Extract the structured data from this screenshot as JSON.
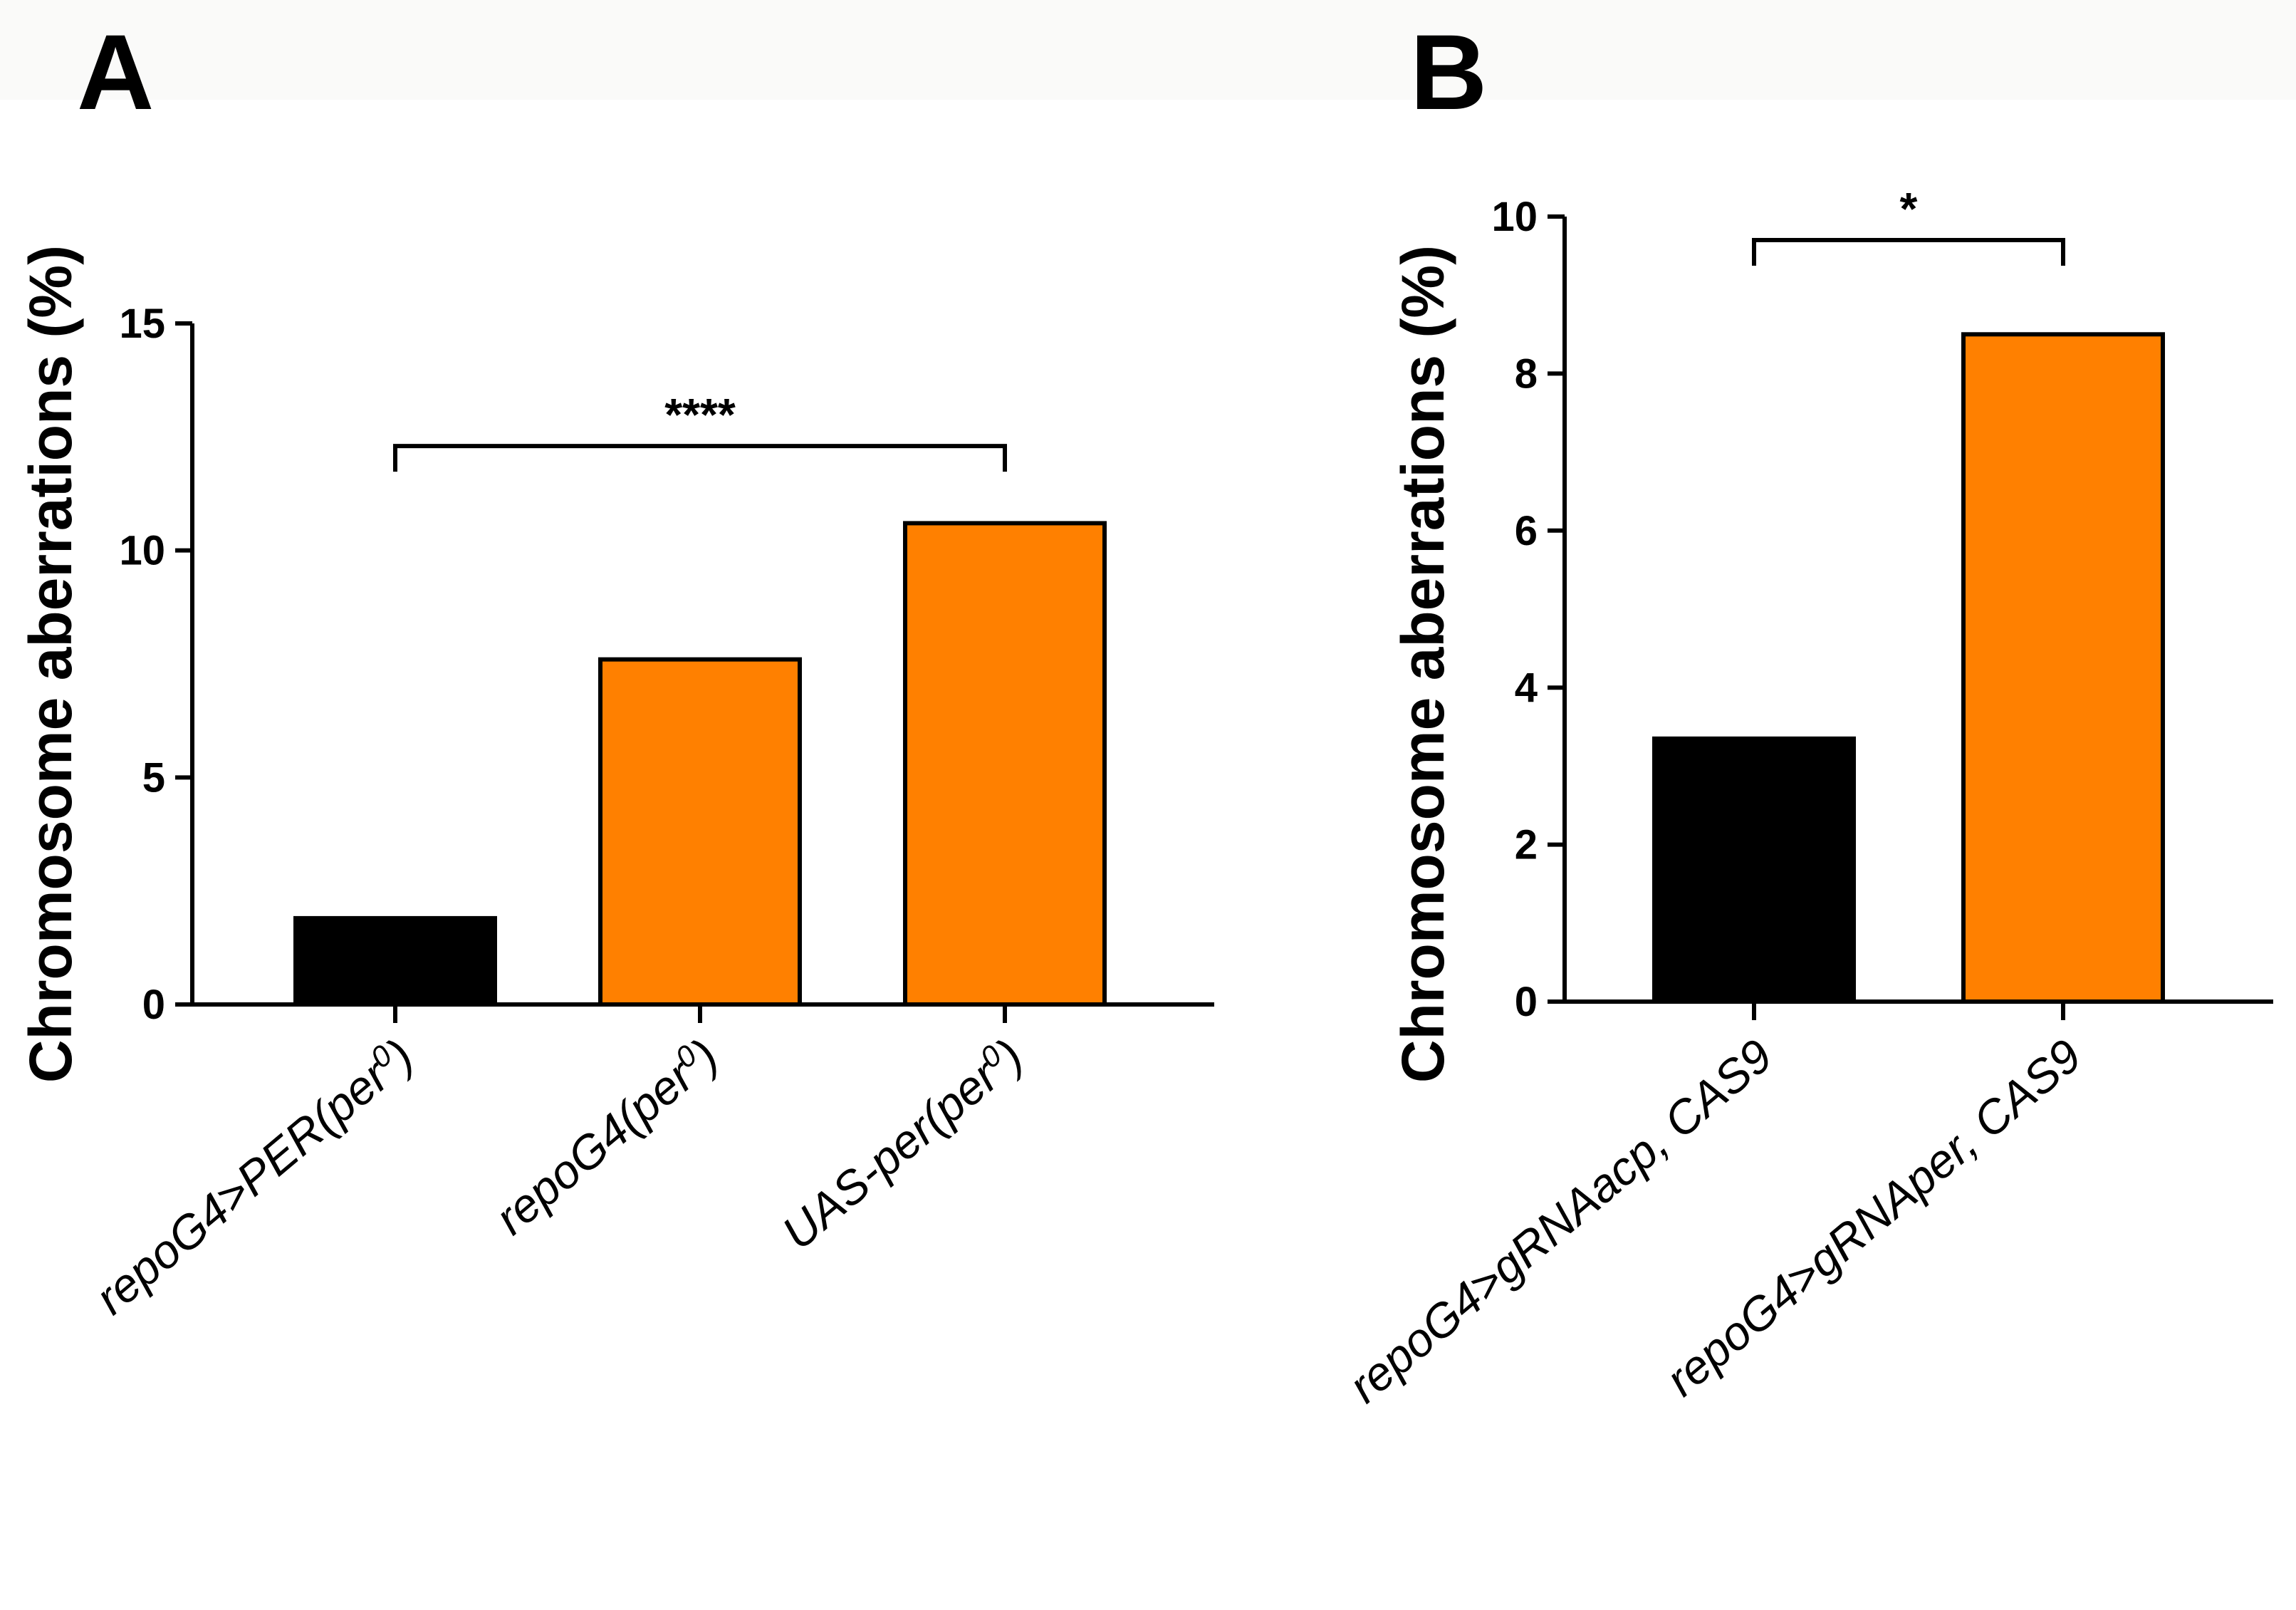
{
  "chart_data": [
    {
      "panel": "A",
      "type": "bar",
      "ylabel": "Chromosome aberrations (%)",
      "ylim": [
        0,
        15
      ],
      "yticks": [
        "0",
        "5",
        "10",
        "15"
      ],
      "categories": [
        {
          "base": "repoG4>PER(per",
          "sup": "0",
          "close": ")"
        },
        {
          "base": "repoG4(per",
          "sup": "0",
          "close": ")"
        },
        {
          "base": "UAS-per(per",
          "sup": "0",
          "close": ")"
        }
      ],
      "values": [
        1.9,
        7.6,
        10.6
      ],
      "colors": [
        "#000000",
        "#ff8000",
        "#ff8000"
      ],
      "significance": {
        "from": 0,
        "to": 2,
        "label": "****",
        "level": 12.3
      }
    },
    {
      "panel": "B",
      "type": "bar",
      "ylabel": "Chromosome aberrations (%)",
      "ylim": [
        0,
        10
      ],
      "yticks": [
        "0",
        "2",
        "4",
        "6",
        "8",
        "10"
      ],
      "categories": [
        {
          "base": "repoG4>gRNAacp, CAS9",
          "sup": "",
          "close": ""
        },
        {
          "base": "repoG4>gRNAper, CAS9",
          "sup": "",
          "close": ""
        }
      ],
      "values": [
        3.35,
        8.5
      ],
      "colors": [
        "#000000",
        "#ff8000"
      ],
      "significance": {
        "from": 0,
        "to": 1,
        "label": "*",
        "level": 9.7
      }
    }
  ]
}
